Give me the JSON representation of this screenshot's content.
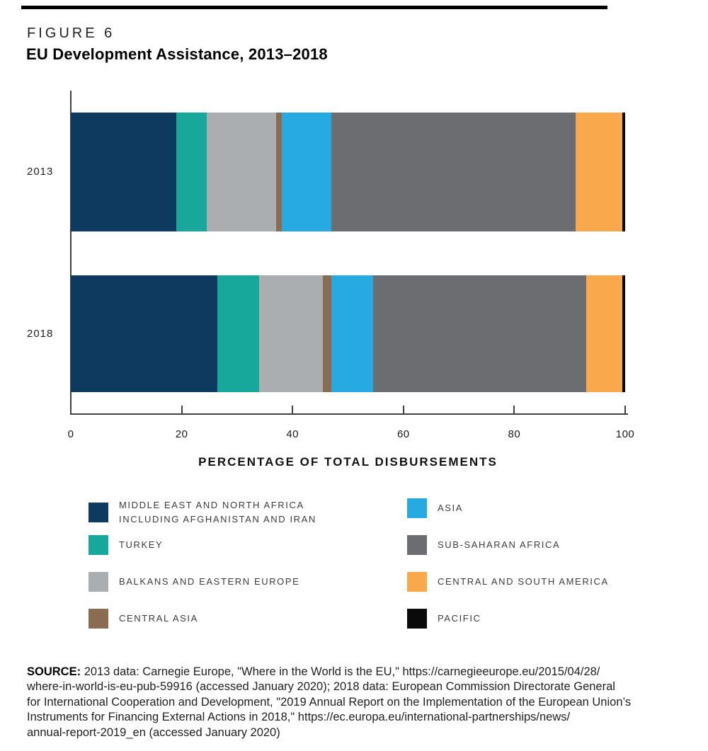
{
  "figure": {
    "kicker": "FIGURE 6",
    "title": "EU Development Assistance, 2013–2018"
  },
  "chart_data": {
    "type": "bar",
    "orientation": "horizontal-stacked",
    "title": "EU Development Assistance, 2013–2018",
    "categories": [
      "2013",
      "2018"
    ],
    "series": [
      {
        "name": "MIDDLE EAST AND NORTH AFRICA\nINCLUDING AFGHANISTAN AND IRAN",
        "color": "#0d3a5e",
        "values": [
          19,
          26.5
        ]
      },
      {
        "name": "TURKEY",
        "color": "#17a89b",
        "values": [
          5.5,
          7.5
        ]
      },
      {
        "name": "BALKANS AND EASTERN EUROPE",
        "color": "#abaeb0",
        "values": [
          12.5,
          11.5
        ]
      },
      {
        "name": "CENTRAL ASIA",
        "color": "#8a6c52",
        "values": [
          1,
          1.5
        ]
      },
      {
        "name": "ASIA",
        "color": "#27aae1",
        "values": [
          9,
          7.5
        ]
      },
      {
        "name": "SUB-SAHARAN AFRICA",
        "color": "#6b6d70",
        "values": [
          44,
          38.5
        ]
      },
      {
        "name": "CENTRAL AND SOUTH AMERICA",
        "color": "#f9a94b",
        "values": [
          8.5,
          6.5
        ]
      },
      {
        "name": "PACIFIC",
        "color": "#0a0a0a",
        "values": [
          0.5,
          0.5
        ]
      }
    ],
    "xlabel": "PERCENTAGE OF TOTAL DISBURSEMENTS",
    "ylabel": "",
    "x_ticks": [
      0,
      20,
      40,
      60,
      80,
      100
    ],
    "xlim": [
      0,
      100
    ],
    "grid": false,
    "legend_position": "bottom-two-columns"
  },
  "source": {
    "label": "SOURCE:",
    "text": "2013 data: Carnegie Europe, \"Where in the World is the EU,\" https://carnegieeurope.eu/2015/04/28/\nwhere-in-world-is-eu-pub-59916 (accessed January 2020); 2018 data: European Commission Directorate General\nfor International Cooperation and Development, \"2019 Annual Report on the Implementation of the European Union’s\nInstruments for Financing External Actions in 2018,\" https://ec.europa.eu/international-partnerships/news/\nannual-report-2019_en (accessed January 2020)"
  }
}
